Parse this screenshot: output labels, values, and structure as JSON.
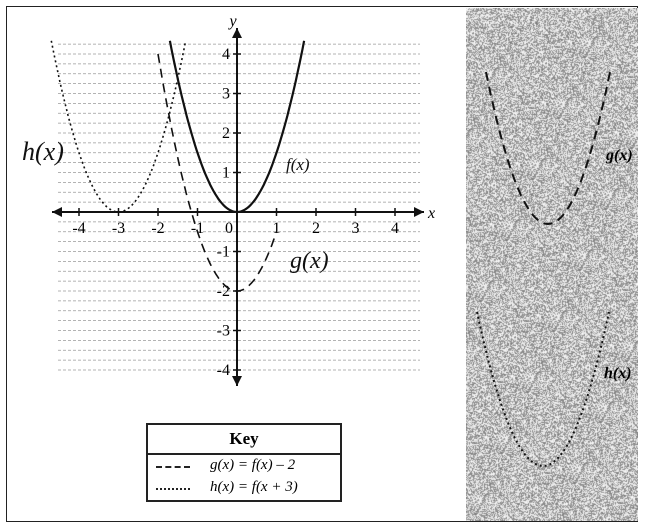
{
  "chart_data": {
    "type": "line",
    "title": "",
    "xlabel": "x",
    "ylabel": "y",
    "xlim": [
      -4.5,
      4.5
    ],
    "ylim": [
      -4.5,
      4.5
    ],
    "x_ticks": [
      "-4",
      "-3",
      "-2",
      "-1",
      "0",
      "1",
      "2",
      "3",
      "4"
    ],
    "y_ticks": [
      "4",
      "3",
      "2",
      "1",
      "-1",
      "-2",
      "-3",
      "-4"
    ],
    "grid": true,
    "series": [
      {
        "name": "f(x)",
        "style": "solid",
        "formula": "y = 1.5x^2",
        "x": [
          -1.7,
          -1.5,
          -1,
          -0.5,
          0,
          0.5,
          1,
          1.5,
          1.7
        ],
        "y": [
          4.34,
          3.38,
          1.5,
          0.38,
          0,
          0.38,
          1.5,
          3.38,
          4.34
        ]
      },
      {
        "name": "g(x)",
        "style": "dashed",
        "formula": "y = 1.5x^2 - 2",
        "x": [
          -2.0,
          -1.5,
          -1,
          -0.5,
          0,
          0.5,
          1
        ],
        "y": [
          4.0,
          1.38,
          -0.5,
          -1.63,
          -2,
          -1.63,
          -0.5
        ]
      },
      {
        "name": "h(x)",
        "style": "dotted",
        "formula": "y = 1.5(x+3)^2",
        "x": [
          -4.7,
          -4,
          -3.5,
          -3,
          -2.5,
          -2,
          -1.3
        ],
        "y": [
          4.34,
          1.5,
          0.38,
          0,
          0.38,
          1.5,
          4.34
        ]
      }
    ],
    "annotations": [
      "h(x)",
      "f(x)",
      "g(x)"
    ],
    "legend": {
      "title": "Key",
      "placement": "bottom",
      "items": [
        {
          "label": "g(x) = f(x) – 2",
          "style": "dashed"
        },
        {
          "label": "h(x) = f(x + 3)",
          "style": "dotted"
        }
      ]
    },
    "side_panels": [
      {
        "label": "g(x)",
        "style": "dashed"
      },
      {
        "label": "h(x)",
        "style": "dotted"
      }
    ]
  }
}
